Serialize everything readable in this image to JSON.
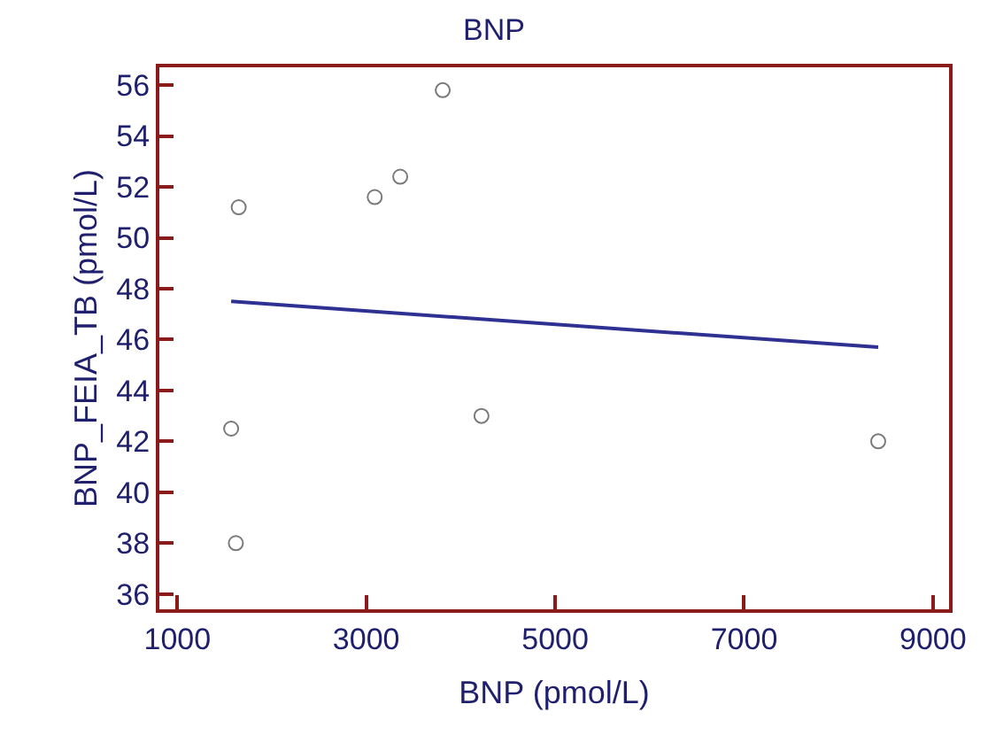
{
  "chart_data": {
    "type": "scatter",
    "title": "BNP",
    "xlabel": "BNP (pmol/L)",
    "ylabel": "BNP_FEIA_TB (pmol/L)",
    "xlim": [
      810,
      9170
    ],
    "xticks": [
      1000,
      3000,
      5000,
      7000,
      9000
    ],
    "ylim": [
      35.4,
      56.7
    ],
    "yticks": [
      36,
      38,
      40,
      42,
      44,
      46,
      48,
      50,
      52,
      54,
      56
    ],
    "series": [
      {
        "marker": "circle",
        "color": "#7a7a7a",
        "x": [
          1650,
          1570,
          1620,
          3090,
          3360,
          3810,
          4220,
          8420
        ],
        "values": [
          51.2,
          42.5,
          38.0,
          51.6,
          52.4,
          55.8,
          43.0,
          42.0
        ]
      },
      {
        "type": "line",
        "marker": "none",
        "line_style": "solid",
        "color": "#2e3192",
        "x": [
          1570,
          8420
        ],
        "values": [
          47.5,
          45.7
        ]
      }
    ]
  }
}
